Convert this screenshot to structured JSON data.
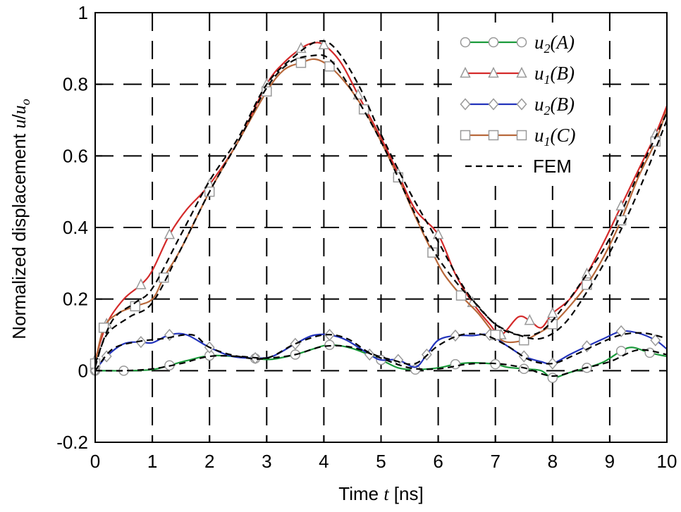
{
  "chart_data": {
    "type": "line",
    "title": "",
    "xlabel": "Time t [ns]",
    "ylabel": "Normalized displacement u/u_o",
    "xlim": [
      0,
      10
    ],
    "ylim": [
      -0.2,
      1.0
    ],
    "xticks": [
      "0",
      "1",
      "2",
      "3",
      "4",
      "5",
      "6",
      "7",
      "8",
      "9",
      "10"
    ],
    "yticks": [
      "-0.2",
      "0",
      "0.2",
      "0.4",
      "0.6",
      "0.8",
      "1"
    ],
    "grid": true,
    "legend_position": "top-right",
    "series": [
      {
        "name": "u2(A)",
        "color": "#1a9a3a",
        "marker": "circle",
        "x": [
          0,
          0.5,
          1,
          1.3,
          1.6,
          2,
          2.4,
          2.8,
          3.1,
          3.5,
          3.8,
          4.1,
          4.5,
          5,
          5.3,
          5.6,
          6,
          6.3,
          6.6,
          7,
          7.2,
          7.5,
          7.8,
          8,
          8.3,
          8.6,
          8.9,
          9.2,
          9.4,
          9.7,
          10
        ],
        "y": [
          0,
          0.0,
          0.003,
          0.015,
          0.028,
          0.042,
          0.04,
          0.034,
          0.032,
          0.045,
          0.06,
          0.072,
          0.062,
          0.03,
          0.008,
          0.003,
          0.008,
          0.018,
          0.022,
          0.018,
          0.01,
          0.005,
          0.0,
          -0.02,
          -0.005,
          0.008,
          0.025,
          0.055,
          0.065,
          0.05,
          0.04
        ]
      },
      {
        "name": "u1(B)",
        "color": "#d42a2a",
        "marker": "triangle",
        "x": [
          0,
          0.2,
          0.5,
          0.8,
          1,
          1.3,
          1.6,
          2,
          2.5,
          3,
          3.3,
          3.6,
          3.8,
          4.0,
          4.3,
          4.6,
          5,
          5.3,
          5.6,
          6,
          6.3,
          6.6,
          6.9,
          7.1,
          7.4,
          7.6,
          7.8,
          8,
          8.3,
          8.6,
          8.9,
          9.2,
          9.5,
          9.8,
          10
        ],
        "y": [
          0.03,
          0.13,
          0.2,
          0.24,
          0.28,
          0.38,
          0.45,
          0.52,
          0.64,
          0.8,
          0.86,
          0.9,
          0.915,
          0.91,
          0.86,
          0.77,
          0.65,
          0.55,
          0.45,
          0.38,
          0.27,
          0.19,
          0.13,
          0.1,
          0.15,
          0.14,
          0.12,
          0.16,
          0.2,
          0.27,
          0.36,
          0.46,
          0.56,
          0.66,
          0.74
        ]
      },
      {
        "name": "u2(B)",
        "color": "#2233bb",
        "marker": "diamond",
        "x": [
          0,
          0.2,
          0.5,
          0.8,
          1,
          1.3,
          1.6,
          2,
          2.4,
          2.8,
          3.1,
          3.5,
          3.8,
          4.1,
          4.4,
          4.8,
          5,
          5.3,
          5.6,
          5.8,
          6,
          6.3,
          6.6,
          6.9,
          7.2,
          7.5,
          7.8,
          8,
          8.3,
          8.6,
          8.9,
          9.2,
          9.5,
          9.8,
          10
        ],
        "y": [
          0,
          0.04,
          0.075,
          0.08,
          0.078,
          0.1,
          0.1,
          0.065,
          0.04,
          0.035,
          0.04,
          0.075,
          0.098,
          0.1,
          0.085,
          0.045,
          0.03,
          0.03,
          0.01,
          0.045,
          0.085,
          0.098,
          0.098,
          0.1,
          0.07,
          0.04,
          0.025,
          0.02,
          0.045,
          0.068,
          0.09,
          0.11,
          0.105,
          0.085,
          0.06
        ]
      },
      {
        "name": "u1(C)",
        "color": "#b8683a",
        "marker": "square",
        "x": [
          0,
          0.15,
          0.4,
          0.7,
          1,
          1.2,
          1.5,
          2,
          2.5,
          3,
          3.3,
          3.6,
          3.85,
          4.1,
          4.4,
          4.7,
          5,
          5.3,
          5.6,
          5.9,
          6.1,
          6.4,
          6.7,
          7,
          7.2,
          7.5,
          7.7,
          8,
          8.3,
          8.6,
          8.9,
          9.2,
          9.5,
          9.8,
          10
        ],
        "y": [
          0.02,
          0.12,
          0.16,
          0.18,
          0.2,
          0.26,
          0.34,
          0.5,
          0.64,
          0.78,
          0.84,
          0.86,
          0.87,
          0.85,
          0.8,
          0.73,
          0.64,
          0.54,
          0.43,
          0.33,
          0.27,
          0.21,
          0.16,
          0.1,
          0.08,
          0.085,
          0.1,
          0.13,
          0.18,
          0.24,
          0.32,
          0.42,
          0.54,
          0.64,
          0.73
        ]
      },
      {
        "name": "FEM",
        "color": "#000000",
        "marker": "none",
        "dashed": true,
        "segments": [
          {
            "x": [
              0,
              0.5,
              1,
              1.5,
              2,
              2.5,
              3,
              3.5,
              4,
              4.5,
              5,
              5.5,
              6,
              6.5,
              7,
              7.5,
              8,
              8.5,
              9,
              9.5,
              10
            ],
            "y": [
              0,
              0.0,
              0.005,
              0.02,
              0.04,
              0.04,
              0.035,
              0.045,
              0.068,
              0.065,
              0.035,
              0.008,
              0.005,
              0.018,
              0.02,
              0.008,
              -0.015,
              0.005,
              0.025,
              0.058,
              0.045
            ]
          },
          {
            "x": [
              0,
              0.3,
              0.7,
              1,
              1.5,
              2,
              2.5,
              3,
              3.5,
              3.9,
              4.2,
              4.6,
              5,
              5.5,
              6,
              6.5,
              7,
              7.4,
              7.8,
              8.2,
              8.6,
              9,
              9.5,
              10
            ],
            "y": [
              0.02,
              0.14,
              0.19,
              0.23,
              0.38,
              0.53,
              0.65,
              0.8,
              0.88,
              0.92,
              0.9,
              0.8,
              0.66,
              0.5,
              0.36,
              0.22,
              0.13,
              0.1,
              0.11,
              0.18,
              0.27,
              0.37,
              0.55,
              0.72
            ]
          },
          {
            "x": [
              0,
              0.3,
              0.7,
              1.2,
              1.7,
              2,
              2.5,
              3,
              3.5,
              4,
              4.4,
              4.8,
              5.2,
              5.6,
              6,
              6.4,
              6.8,
              7.2,
              7.6,
              8,
              8.4,
              8.8,
              9.2,
              9.6,
              10
            ],
            "y": [
              0,
              0.06,
              0.08,
              0.09,
              0.1,
              0.065,
              0.04,
              0.035,
              0.075,
              0.1,
              0.09,
              0.05,
              0.03,
              0.02,
              0.07,
              0.1,
              0.1,
              0.07,
              0.03,
              0.02,
              0.045,
              0.075,
              0.1,
              0.105,
              0.09
            ]
          },
          {
            "x": [
              0,
              0.2,
              0.6,
              1,
              1.5,
              2,
              2.5,
              3,
              3.4,
              3.8,
              4.1,
              4.5,
              5,
              5.5,
              5.9,
              6.3,
              6.7,
              7,
              7.4,
              7.8,
              8.2,
              8.6,
              9,
              9.5,
              10
            ],
            "y": [
              0.01,
              0.1,
              0.15,
              0.19,
              0.34,
              0.5,
              0.64,
              0.79,
              0.86,
              0.88,
              0.87,
              0.78,
              0.64,
              0.47,
              0.34,
              0.25,
              0.18,
              0.13,
              0.1,
              0.09,
              0.13,
              0.22,
              0.33,
              0.5,
              0.7
            ]
          }
        ]
      }
    ]
  },
  "legend": {
    "items": [
      {
        "base": "u",
        "sub": "2",
        "arg": "(A)"
      },
      {
        "base": "u",
        "sub": "1",
        "arg": "(B)"
      },
      {
        "base": "u",
        "sub": "2",
        "arg": "(B)"
      },
      {
        "base": "u",
        "sub": "1",
        "arg": "(C)"
      },
      {
        "plain": "FEM"
      }
    ]
  },
  "axis_labels": {
    "x_prefix": "Time ",
    "x_var": "t",
    "x_suffix": " [ns]",
    "y_prefix": "Normalized displacement ",
    "y_var": "u",
    "y_slash": "/",
    "y_var2": "u",
    "y_sub": "o"
  }
}
